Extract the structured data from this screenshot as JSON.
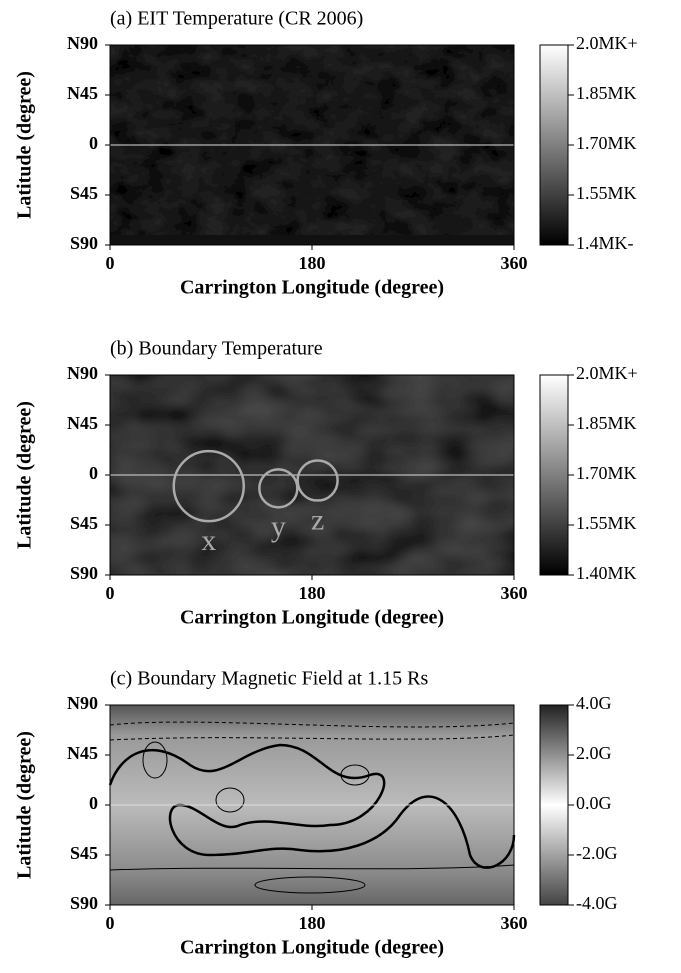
{
  "chart_data": [
    {
      "type": "map",
      "title": "(a) EIT Temperature (CR 2006)",
      "xlabel": "Carrington Longitude (degree)",
      "ylabel": "Latitude (degree)",
      "xlim": [
        0,
        360
      ],
      "xticks": [
        0,
        180,
        360
      ],
      "ylim": [
        -90,
        90
      ],
      "yticks": [
        {
          "value": 90,
          "label": "N90"
        },
        {
          "value": 45,
          "label": "N45"
        },
        0,
        {
          "value": -45,
          "label": "S45"
        },
        {
          "value": -90,
          "label": "S90"
        }
      ],
      "colorbar": {
        "lim": [
          1.4,
          2.0
        ],
        "ticks": [
          {
            "value": 2.0,
            "label": "2.0MK+"
          },
          {
            "value": 1.85,
            "label": "1.85MK"
          },
          {
            "value": 1.7,
            "label": "1.70MK"
          },
          {
            "value": 1.55,
            "label": "1.55MK"
          },
          {
            "value": 1.4,
            "label": "1.4MK-"
          }
        ]
      }
    },
    {
      "type": "map",
      "title": "(b) Boundary Temperature",
      "xlabel": "Carrington Longitude (degree)",
      "ylabel": "Latitude (degree)",
      "xlim": [
        0,
        360
      ],
      "xticks": [
        0,
        180,
        360
      ],
      "ylim": [
        -90,
        90
      ],
      "yticks": [
        {
          "value": 90,
          "label": "N90"
        },
        {
          "value": 45,
          "label": "N45"
        },
        0,
        {
          "value": -45,
          "label": "S45"
        },
        {
          "value": -90,
          "label": "S90"
        }
      ],
      "annotations": [
        "x",
        "y",
        "z"
      ],
      "colorbar": {
        "lim": [
          1.4,
          2.0
        ],
        "ticks": [
          {
            "value": 2.0,
            "label": "2.0MK+"
          },
          {
            "value": 1.85,
            "label": "1.85MK"
          },
          {
            "value": 1.7,
            "label": "1.70MK"
          },
          {
            "value": 1.55,
            "label": "1.55MK"
          },
          {
            "value": 1.4,
            "label": "1.40MK"
          }
        ]
      }
    },
    {
      "type": "map",
      "title": "(c) Boundary Magnetic Field at 1.15 Rs",
      "xlabel": "Carrington Longitude (degree)",
      "ylabel": "Latitude (degree)",
      "xlim": [
        0,
        360
      ],
      "xticks": [
        0,
        180,
        360
      ],
      "ylim": [
        -90,
        90
      ],
      "yticks": [
        {
          "value": 90,
          "label": "N90"
        },
        {
          "value": 45,
          "label": "N45"
        },
        0,
        {
          "value": -45,
          "label": "S45"
        },
        {
          "value": -90,
          "label": "S90"
        }
      ],
      "colorbar": {
        "lim": [
          -4,
          4
        ],
        "ticks": [
          {
            "value": 4,
            "label": "4.0G"
          },
          {
            "value": 2,
            "label": "2.0G"
          },
          {
            "value": 0,
            "label": "0.0G"
          },
          {
            "value": -2,
            "label": "-2.0G"
          },
          {
            "value": -4,
            "label": "-4.0G"
          }
        ]
      }
    }
  ]
}
